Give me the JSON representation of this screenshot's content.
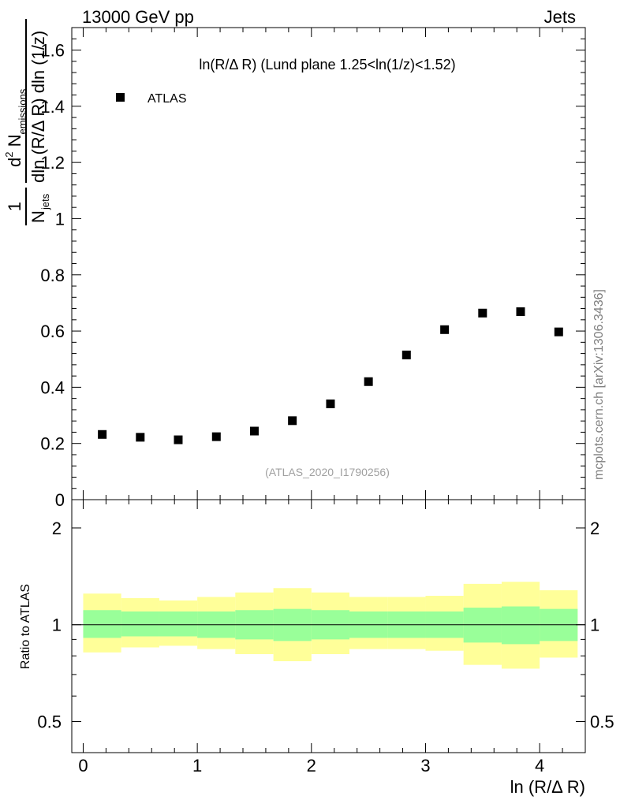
{
  "header": {
    "left": "13000 GeV pp",
    "right": "Jets"
  },
  "side_label": "mcplots.cern.ch [arXiv:1306.3436]",
  "watermark": "(ATLAS_2020_I1790256)",
  "colors": {
    "marker": "#000000",
    "band_inner": "#99ff99",
    "band_outer": "#ffff99",
    "reference_line": "#000000"
  },
  "chart_data": [
    {
      "type": "scatter",
      "title": "ln(R/Δ R) (Lund plane 1.25<ln(1/z)<1.52)",
      "ylabel": {
        "frac_num": "1",
        "frac_den": "N",
        "frac_den_sub": "jets",
        "main_num": "d",
        "main_num_sup": "2",
        "main_num_rest": " N",
        "main_num_sub": "emissions",
        "main_den": "dln (R/Δ R) dln (1/z)"
      },
      "xlim": [
        -0.1,
        4.4
      ],
      "ylim": [
        0,
        1.68
      ],
      "yticks": [
        "0.2",
        "0.4",
        "0.6",
        "0.8",
        "1",
        "1.2",
        "1.4",
        "1.6"
      ],
      "ytick_values": [
        0.2,
        0.4,
        0.6,
        0.8,
        1.0,
        1.2,
        1.4,
        1.6
      ],
      "ytick_partial": "0",
      "legend": {
        "entries": [
          "ATLAS"
        ],
        "position": "top-left"
      },
      "series": [
        {
          "name": "ATLAS",
          "marker": "square",
          "x": [
            0.167,
            0.5,
            0.833,
            1.167,
            1.5,
            1.833,
            2.167,
            2.5,
            2.833,
            3.167,
            3.5,
            3.833,
            4.167
          ],
          "y": [
            0.232,
            0.222,
            0.213,
            0.224,
            0.244,
            0.281,
            0.341,
            0.42,
            0.515,
            0.605,
            0.664,
            0.669,
            0.597
          ]
        }
      ]
    },
    {
      "type": "area",
      "ylabel": "Ratio to ATLAS",
      "xlabel": "ln (R/Δ R)",
      "log_y": true,
      "xlim": [
        -0.1,
        4.4
      ],
      "ylim": [
        0.4,
        2.45
      ],
      "xticks": [
        "0",
        "1",
        "2",
        "3",
        "4"
      ],
      "xtick_values": [
        0,
        1,
        2,
        3,
        4
      ],
      "yticks": [
        "0.5",
        "1",
        "2"
      ],
      "ytick_values": [
        0.5,
        1,
        2
      ],
      "reference": 1,
      "bin_edges": [
        0,
        0.333,
        0.667,
        1.0,
        1.333,
        1.667,
        2.0,
        2.333,
        2.667,
        3.0,
        3.333,
        3.667,
        4.0,
        4.333
      ],
      "inner_band": {
        "low": [
          0.91,
          0.92,
          0.92,
          0.91,
          0.9,
          0.89,
          0.9,
          0.91,
          0.91,
          0.91,
          0.88,
          0.87,
          0.89
        ],
        "high": [
          1.11,
          1.1,
          1.1,
          1.1,
          1.11,
          1.12,
          1.11,
          1.1,
          1.1,
          1.1,
          1.13,
          1.14,
          1.12
        ]
      },
      "outer_band": {
        "low": [
          0.82,
          0.85,
          0.86,
          0.84,
          0.81,
          0.77,
          0.81,
          0.84,
          0.84,
          0.83,
          0.75,
          0.73,
          0.79
        ],
        "high": [
          1.25,
          1.21,
          1.19,
          1.22,
          1.26,
          1.3,
          1.26,
          1.22,
          1.22,
          1.23,
          1.34,
          1.36,
          1.28
        ]
      }
    }
  ]
}
